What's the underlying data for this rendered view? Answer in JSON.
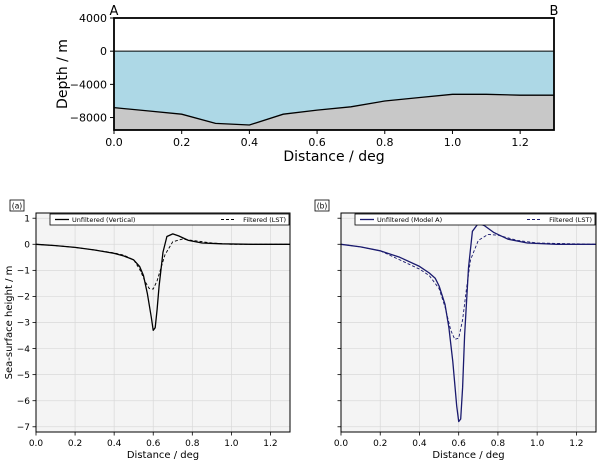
{
  "chart_data": [
    {
      "type": "area",
      "xlabel": "Distance / deg",
      "ylabel": "Depth / m",
      "xlim": [
        0,
        1.3
      ],
      "ylim": [
        -9500,
        4000
      ],
      "xticks": [
        "0.0",
        "0.2",
        "0.4",
        "0.6",
        "0.8",
        "1.0",
        "1.2"
      ],
      "yticks": [
        "4000",
        "0",
        "−4000",
        "−8000"
      ],
      "endpoint_labels": [
        "A",
        "B"
      ],
      "sea_level": 0,
      "bathymetry": {
        "x": [
          0.0,
          0.1,
          0.2,
          0.3,
          0.4,
          0.5,
          0.6,
          0.7,
          0.8,
          0.9,
          1.0,
          1.1,
          1.2,
          1.3
        ],
        "y": [
          -6800,
          -7200,
          -7600,
          -8700,
          -8900,
          -7600,
          -7100,
          -6700,
          -6000,
          -5600,
          -5200,
          -5200,
          -5300,
          -5300
        ]
      },
      "colors": {
        "ocean": "#add8e6",
        "seabed": "#c8c8c8"
      }
    },
    {
      "type": "line",
      "panel": "(a)",
      "xlabel": "Distance / deg",
      "ylabel": "Sea-surface height / m",
      "xlim": [
        0,
        1.3
      ],
      "ylim": [
        -7.2,
        1.2
      ],
      "xticks": [
        "0.0",
        "0.2",
        "0.4",
        "0.6",
        "0.8",
        "1.0",
        "1.2"
      ],
      "yticks": [
        "1",
        "0",
        "−1",
        "−2",
        "−3",
        "−4",
        "−5",
        "−6",
        "−7"
      ],
      "series": [
        {
          "name": "Unfiltered (Vertical)",
          "color": "#000000",
          "style": "solid",
          "x": [
            0.0,
            0.1,
            0.2,
            0.3,
            0.4,
            0.45,
            0.5,
            0.53,
            0.55,
            0.57,
            0.59,
            0.6,
            0.61,
            0.62,
            0.63,
            0.65,
            0.67,
            0.7,
            0.73,
            0.78,
            0.85,
            0.95,
            1.1,
            1.3
          ],
          "y": [
            0.0,
            -0.05,
            -0.12,
            -0.22,
            -0.35,
            -0.45,
            -0.6,
            -0.85,
            -1.2,
            -1.9,
            -2.8,
            -3.3,
            -3.2,
            -2.5,
            -1.6,
            -0.3,
            0.3,
            0.4,
            0.32,
            0.15,
            0.05,
            0.02,
            0.0,
            0.0
          ]
        },
        {
          "name": "Filtered (LST)",
          "color": "#000000",
          "style": "dashed",
          "x": [
            0.0,
            0.1,
            0.2,
            0.3,
            0.4,
            0.45,
            0.5,
            0.53,
            0.56,
            0.58,
            0.6,
            0.62,
            0.64,
            0.66,
            0.7,
            0.75,
            0.8,
            0.9,
            1.0,
            1.3
          ],
          "y": [
            0.0,
            -0.05,
            -0.12,
            -0.22,
            -0.33,
            -0.42,
            -0.6,
            -0.95,
            -1.45,
            -1.7,
            -1.72,
            -1.4,
            -0.9,
            -0.4,
            0.1,
            0.2,
            0.15,
            0.05,
            0.0,
            0.0
          ]
        }
      ]
    },
    {
      "type": "line",
      "panel": "(b)",
      "xlabel": "Distance / deg",
      "ylabel": "",
      "xlim": [
        0,
        1.3
      ],
      "ylim": [
        -7.2,
        1.2
      ],
      "xticks": [
        "0.0",
        "0.2",
        "0.4",
        "0.6",
        "0.8",
        "1.0",
        "1.2"
      ],
      "yticks": [
        "1",
        "0",
        "−1",
        "−2",
        "−3",
        "−4",
        "−5",
        "−6",
        "−7"
      ],
      "series": [
        {
          "name": "Unfiltered (Model A)",
          "color": "#1a1a6e",
          "style": "solid",
          "x": [
            0.0,
            0.1,
            0.2,
            0.3,
            0.4,
            0.45,
            0.48,
            0.5,
            0.53,
            0.55,
            0.57,
            0.59,
            0.6,
            0.61,
            0.62,
            0.63,
            0.65,
            0.67,
            0.7,
            0.73,
            0.78,
            0.85,
            0.95,
            1.1,
            1.3
          ],
          "y": [
            0.0,
            -0.1,
            -0.25,
            -0.5,
            -0.85,
            -1.1,
            -1.3,
            -1.6,
            -2.3,
            -3.2,
            -4.5,
            -6.2,
            -6.8,
            -6.7,
            -5.5,
            -3.5,
            -0.9,
            0.5,
            0.8,
            0.72,
            0.45,
            0.2,
            0.05,
            0.0,
            0.0
          ]
        },
        {
          "name": "Filtered (LST)",
          "color": "#1a1a6e",
          "style": "dashed",
          "x": [
            0.0,
            0.1,
            0.2,
            0.3,
            0.4,
            0.45,
            0.5,
            0.53,
            0.56,
            0.58,
            0.6,
            0.62,
            0.64,
            0.66,
            0.7,
            0.75,
            0.8,
            0.9,
            1.0,
            1.3
          ],
          "y": [
            0.0,
            -0.1,
            -0.25,
            -0.6,
            -0.95,
            -1.2,
            -1.7,
            -2.4,
            -3.3,
            -3.65,
            -3.6,
            -2.9,
            -1.7,
            -0.6,
            0.15,
            0.38,
            0.35,
            0.15,
            0.05,
            0.0
          ]
        }
      ]
    }
  ]
}
